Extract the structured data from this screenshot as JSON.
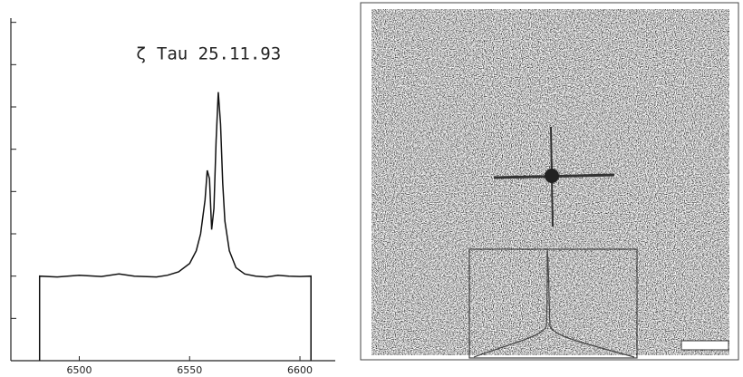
{
  "chart_data": {
    "type": "line",
    "annotation": "ζ Tau 25.11.93",
    "x": [
      6482,
      6482,
      6490,
      6500,
      6510,
      6518,
      6525,
      6535,
      6540,
      6545,
      6550,
      6553,
      6555,
      6557,
      6558,
      6559,
      6560,
      6561,
      6562,
      6563,
      6564,
      6565,
      6566,
      6568,
      6571,
      6575,
      6580,
      6585,
      6590,
      6595,
      6600,
      6605,
      6605
    ],
    "values": [
      0,
      2.0,
      1.98,
      2.02,
      1.99,
      2.05,
      2.0,
      1.98,
      2.02,
      2.1,
      2.3,
      2.6,
      3.0,
      3.8,
      4.5,
      4.3,
      3.1,
      3.6,
      5.2,
      6.35,
      5.6,
      4.2,
      3.3,
      2.6,
      2.2,
      2.05,
      2.0,
      1.98,
      2.02,
      2.0,
      1.99,
      2.0,
      0
    ],
    "color": "#111111",
    "xlim": [
      6469,
      6616
    ],
    "xticks": [
      6500,
      6550,
      6600
    ],
    "ylim": [
      0,
      8.1
    ],
    "yticks": [
      0,
      1,
      2,
      3,
      4,
      5,
      6,
      7,
      8
    ]
  }
}
